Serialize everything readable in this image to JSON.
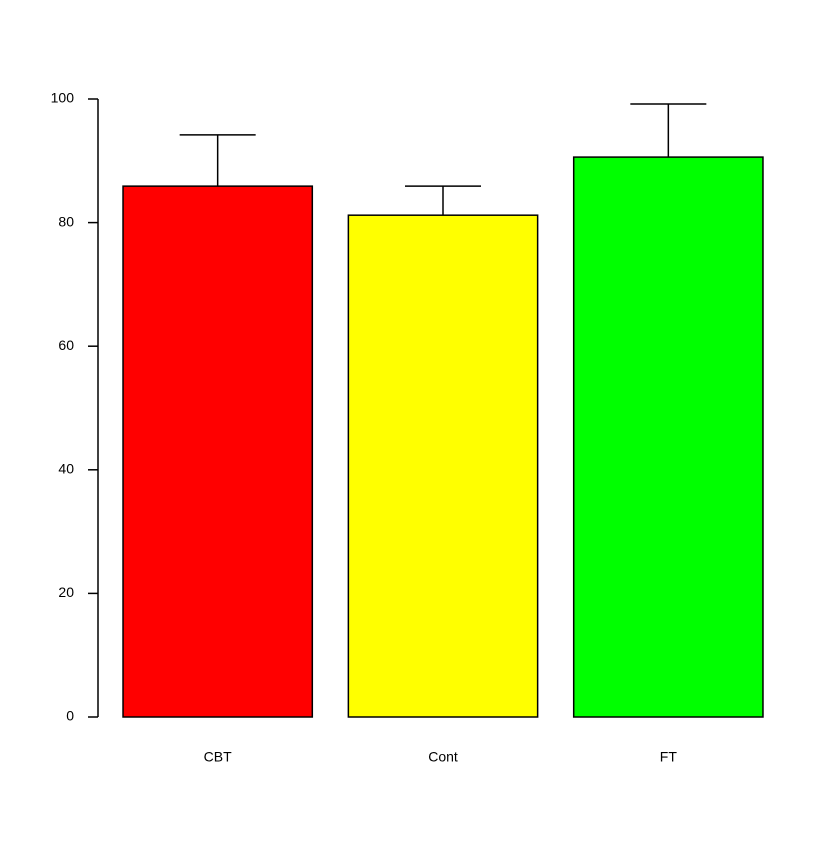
{
  "chart_data": {
    "type": "bar",
    "categories": [
      "CBT",
      "Cont",
      "FT"
    ],
    "values": [
      85.9,
      81.2,
      90.6
    ],
    "errors": [
      8.3,
      4.7,
      8.6
    ],
    "colors": [
      "#ff0000",
      "#ffff00",
      "#00ff00"
    ],
    "ylim": [
      0,
      100
    ],
    "yticks": [
      0,
      20,
      40,
      60,
      80,
      100
    ],
    "grid": false
  }
}
